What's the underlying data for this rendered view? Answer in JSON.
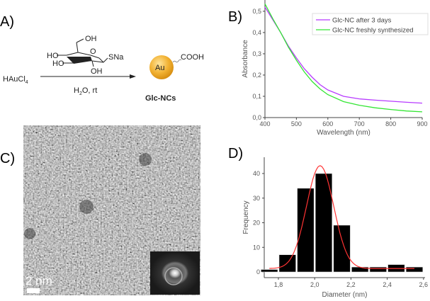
{
  "panels": {
    "a": {
      "label": "A)",
      "reactant": "HAuCl",
      "reactant_sub": "4",
      "ligand_oh_top": "OH",
      "ligand_ho1": "HO",
      "ligand_ho2": "HO",
      "ligand_o": "O",
      "ligand_sna": "SNa",
      "ligand_oh_bottom": "OH",
      "conditions_pre": "H",
      "conditions_sub": "2",
      "conditions_post": "O, rt",
      "cluster_core": "Au",
      "cluster_group": "COOH",
      "product": "Glc-NCs",
      "gold_color": "#f2b233"
    },
    "b": {
      "label": "B)"
    },
    "c": {
      "label": "C)",
      "scale_bar": "2 nm"
    },
    "d": {
      "label": "D)"
    }
  },
  "chart_data": [
    {
      "type": "line",
      "xlabel": "Wavelength (nm)",
      "ylabel": "Absorbance",
      "xlim": [
        400,
        900
      ],
      "ylim": [
        0.0,
        0.553
      ],
      "xticks": [
        "400",
        "500",
        "600",
        "700",
        "800",
        "900"
      ],
      "yticks": [
        "0,0",
        "0,1",
        "0,2",
        "0,3",
        "0,4",
        "0,5"
      ],
      "legend_position": "top-right",
      "grid": false,
      "series": [
        {
          "name": "Glc-NC after 3 days",
          "color": "#b73bff",
          "x": [
            400,
            425,
            450,
            475,
            500,
            525,
            550,
            575,
            600,
            650,
            700,
            750,
            800,
            850,
            900
          ],
          "y": [
            0.52,
            0.46,
            0.4,
            0.335,
            0.28,
            0.23,
            0.19,
            0.155,
            0.13,
            0.1,
            0.088,
            0.082,
            0.077,
            0.072,
            0.068
          ]
        },
        {
          "name": "Glc-NC freshly synthesized",
          "color": "#33e633",
          "x": [
            400,
            425,
            450,
            475,
            500,
            525,
            550,
            575,
            600,
            650,
            700,
            750,
            800,
            850,
            900
          ],
          "y": [
            0.535,
            0.465,
            0.4,
            0.33,
            0.27,
            0.215,
            0.17,
            0.135,
            0.108,
            0.075,
            0.058,
            0.046,
            0.038,
            0.031,
            0.027
          ]
        }
      ]
    },
    {
      "type": "bar",
      "xlabel": "Diameter (nm)",
      "ylabel": "Frequency",
      "xlim": [
        1.7,
        2.6
      ],
      "ylim": [
        0,
        48
      ],
      "xticks": [
        "1,8",
        "2,0",
        "2,2",
        "2,4",
        "2,6"
      ],
      "yticks": [
        "0",
        "10",
        "20",
        "30",
        "40"
      ],
      "bin_width": 0.1,
      "bin_centers": [
        1.75,
        1.85,
        1.95,
        2.05,
        2.15,
        2.25,
        2.35,
        2.45,
        2.55
      ],
      "values": [
        1,
        7,
        34,
        40,
        19,
        2,
        2,
        3,
        2
      ],
      "bar_color": "#000000",
      "fit": {
        "type": "gaussian",
        "center": 2.03,
        "amplitude": 41.8,
        "sigma": 0.075,
        "baseline": 1.4,
        "range": [
          1.75,
          2.55
        ],
        "color": "#ff3333"
      }
    }
  ]
}
